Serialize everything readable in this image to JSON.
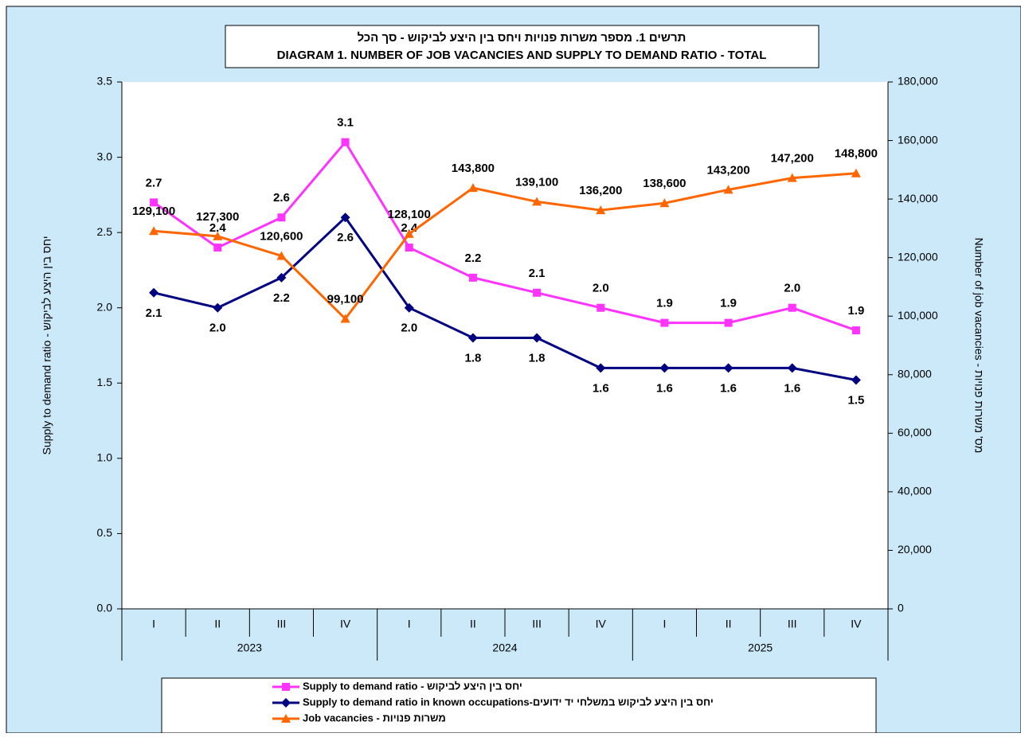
{
  "chart_data": {
    "type": "line",
    "title": [
      "תרשים 1. מספר משרות פנויות ויחס בין היצע לביקוש - סך הכל",
      "DIAGRAM 1. NUMBER OF JOB VACANCIES AND SUPPLY TO DEMAND RATIO - TOTAL"
    ],
    "ylabel": "Supply to demand ratio - יחס בין היצע לביקוש",
    "y2label": "Number of job vacancies - מס' משרות פנויות",
    "categories": [
      "I",
      "II",
      "III",
      "IV",
      "I",
      "II",
      "III",
      "IV",
      "I",
      "II",
      "III",
      "IV"
    ],
    "years": [
      "2023",
      "2024",
      "2025"
    ],
    "ylim": [
      0,
      3.5
    ],
    "yticks": [
      {
        "value": 0,
        "label": "0.0"
      },
      0.5,
      {
        "value": 1,
        "label": "1.0"
      },
      1.5,
      {
        "value": 2,
        "label": "2.0"
      },
      2.5,
      {
        "value": 3,
        "label": "3.0"
      },
      3.5
    ],
    "y2lim": [
      0,
      180000
    ],
    "y2ticks": [
      0,
      {
        "value": 20000,
        "label": "20,000"
      },
      {
        "value": 40000,
        "label": "40,000"
      },
      {
        "value": 60000,
        "label": "60,000"
      },
      {
        "value": 80000,
        "label": "80,000"
      },
      {
        "value": 100000,
        "label": "100,000"
      },
      {
        "value": 120000,
        "label": "120,000"
      },
      {
        "value": 140000,
        "label": "140,000"
      },
      {
        "value": 160000,
        "label": "160,000"
      },
      {
        "value": 180000,
        "label": "180,000"
      }
    ],
    "series": [
      {
        "name": "Supply to demand ratio - יחס בין היצע לביקוש",
        "color": "#ff33ff",
        "marker": "square",
        "values": [
          2.7,
          2.4,
          2.6,
          3.1,
          2.4,
          2.2,
          2.1,
          2.0,
          1.9,
          1.9,
          2.0,
          1.85
        ],
        "value_labels": [
          "2.7",
          "2.4",
          "2.6",
          "3.1",
          "2.4",
          "2.2",
          "2.1",
          "2.0",
          "1.9",
          "1.9",
          "2.0",
          "1.9"
        ]
      },
      {
        "name": "Supply to demand ratio in known occupations-יחס בין היצע לביקוש במשלחי יד ידועים",
        "color": "#000080",
        "marker": "diamond",
        "values": [
          2.1,
          2.0,
          2.2,
          2.6,
          2.0,
          1.8,
          1.8,
          1.6,
          1.6,
          1.6,
          1.6,
          1.52
        ],
        "value_labels": [
          "2.1",
          "2.0",
          "2.2",
          "2.6",
          "2.0",
          "1.8",
          "1.8",
          "1.6",
          "1.6",
          "1.6",
          "1.6",
          "1.5"
        ]
      },
      {
        "name": "Job vacancies - משרות פנויות",
        "color": "#ff6600",
        "marker": "triangle",
        "axis": "y2",
        "values": [
          129100,
          127300,
          120600,
          99100,
          128100,
          143800,
          139100,
          136200,
          138600,
          143200,
          147200,
          148800
        ],
        "value_labels": [
          "129,100",
          "127,300",
          "120,600",
          "99,100",
          "128,100",
          "143,800",
          "139,100",
          "136,200",
          "138,600",
          "143,200",
          "147,200",
          "148,800"
        ]
      }
    ]
  }
}
